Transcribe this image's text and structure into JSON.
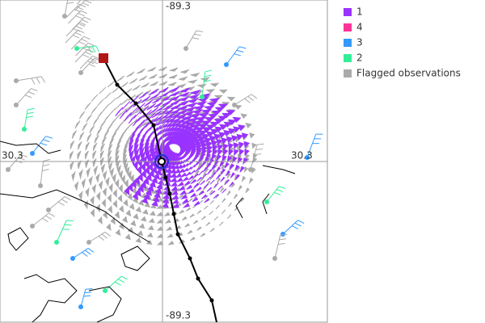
{
  "map": {
    "axis_labels": {
      "top": "-89.3",
      "bottom": "-89.3",
      "left": "30.3",
      "right": "30.3"
    },
    "legend": [
      {
        "label": "1",
        "color": "#9933ff"
      },
      {
        "label": "4",
        "color": "#ff3399"
      },
      {
        "label": "3",
        "color": "#3399ff"
      },
      {
        "label": "2",
        "color": "#33ee99"
      },
      {
        "label": "Flagged observations",
        "color": "#aaaaaa"
      }
    ]
  }
}
